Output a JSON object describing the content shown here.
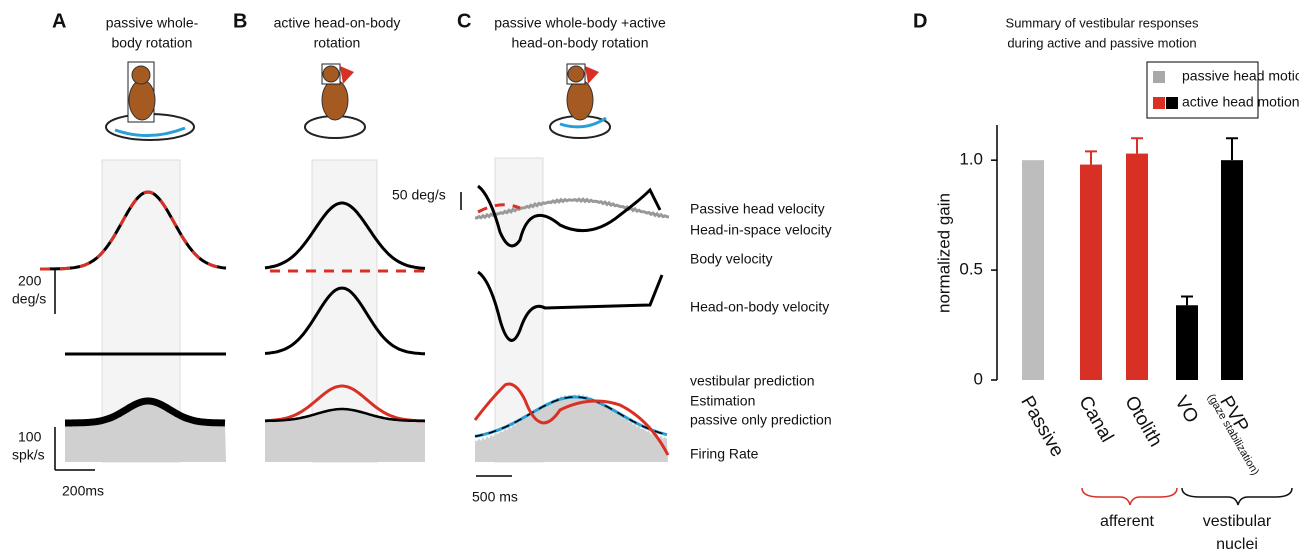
{
  "panels": [
    {
      "letter": "A",
      "title": [
        "passive whole-",
        "body rotation"
      ]
    },
    {
      "letter": "B",
      "title": [
        "active head-on-body",
        "rotation"
      ]
    },
    {
      "letter": "C",
      "title": [
        "passive whole-body +active",
        "head-on-body rotation"
      ]
    }
  ],
  "scale_labels": {
    "a_velocity": [
      "200",
      "deg/s"
    ],
    "a_rate": [
      "100",
      "spk/s"
    ],
    "a_time": "200ms",
    "c_velocity": "50 deg/s",
    "c_time": "500 ms"
  },
  "trace_labels": [
    {
      "text": "Passive head velocity",
      "color": "#b0b0b0"
    },
    {
      "text": "Head-in-space velocity",
      "color": "#111111"
    },
    {
      "text": "Body velocity",
      "color": "#d93026"
    },
    {
      "text": "Head-on-body velocity",
      "color": "#111111"
    },
    {
      "text": "vestibular prediction",
      "color": "#d93026"
    },
    {
      "text": "Estimation",
      "color": "#111111"
    },
    {
      "text": "passive only prediction",
      "color": "#2a9fd6"
    },
    {
      "text": "Firing Rate",
      "color": "#111111"
    }
  ],
  "chart_data": {
    "type": "bar",
    "letter": "D",
    "title": [
      "Summary of vestibular responses",
      "during active and passive motion"
    ],
    "ylabel": "normalized gain",
    "categories": [
      "Passive",
      "Canal",
      "Otolith",
      "VO",
      "PVP"
    ],
    "category_note": "(gaze stabilization)",
    "values": [
      1.0,
      0.98,
      1.03,
      0.34,
      1.0
    ],
    "errors": [
      null,
      0.06,
      0.07,
      0.04,
      0.1
    ],
    "colors": [
      "#bdbdbd",
      "#d93026",
      "#d93026",
      "#000000",
      "#000000"
    ],
    "label_colors": [
      "#b0b0b0",
      "#d93026",
      "#d93026",
      "#111111",
      "#111111"
    ],
    "ylim": [
      0,
      1.16
    ],
    "yticks": [
      0,
      0.5,
      {
        "value": 1.0,
        "label": "1.0"
      }
    ],
    "legend": [
      {
        "name": "passive head motion",
        "colors": [
          "#a8a8a8"
        ]
      },
      {
        "name": "active head motion",
        "colors": [
          "#d93026",
          "#000000"
        ]
      }
    ],
    "groups": [
      {
        "label": [
          "afferent"
        ],
        "color": "#d93026"
      },
      {
        "label": [
          "vestibular",
          "nuclei"
        ],
        "color": "#111111"
      }
    ]
  }
}
